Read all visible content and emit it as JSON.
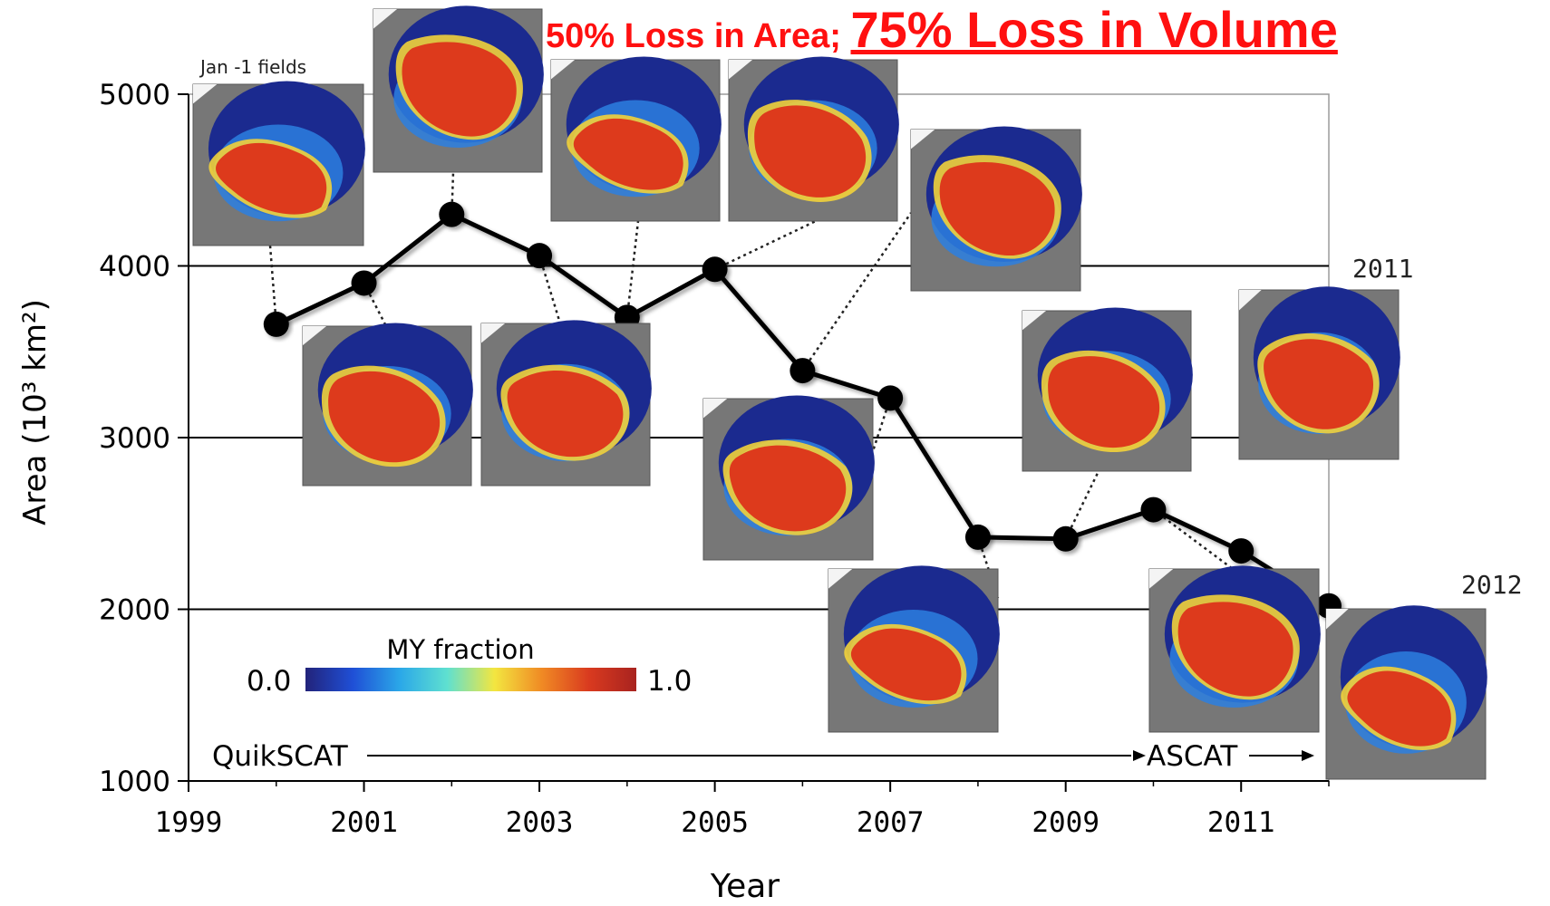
{
  "headline": {
    "part1": "50% Loss in Area; ",
    "part2": "75% Loss in Volume",
    "color": "#ff0000"
  },
  "chart_data": {
    "type": "line",
    "xlabel": "Year",
    "ylabel": "Area (10³ km²)",
    "xlim": [
      1999,
      2012
    ],
    "ylim": [
      1000,
      5000
    ],
    "x_ticks": [
      "1999",
      "2001",
      "2003",
      "2005",
      "2007",
      "2009",
      "2011"
    ],
    "y_ticks": [
      "1000",
      "2000",
      "3000",
      "4000",
      "5000"
    ],
    "grid": "horizontal at 2000, 3000, 4000",
    "x": [
      2000,
      2001,
      2002,
      2003,
      2004,
      2005,
      2006,
      2007,
      2008,
      2009,
      2010,
      2011,
      2012
    ],
    "values": [
      3660,
      3900,
      4300,
      4060,
      3700,
      3980,
      3390,
      3230,
      2420,
      2410,
      2580,
      2340,
      2020
    ],
    "line_color": "#000000",
    "annotations": {
      "inset_caption": "Jan -1 fields",
      "year_2011": "2011",
      "year_2012": "2012",
      "sensor_1": "QuikSCAT",
      "sensor_2": "ASCAT"
    },
    "colorbar": {
      "title": "MY fraction",
      "min_label": "0.0",
      "max_label": "1.0",
      "colors": [
        "#22237a",
        "#1f4fd6",
        "#2ba8e8",
        "#5fe0d0",
        "#f3e640",
        "#f08a24",
        "#d93a1f",
        "#a8231f"
      ]
    },
    "insets": [
      {
        "year": 2000,
        "pattern": "arctic-map"
      },
      {
        "year": 2001,
        "pattern": "arctic-map"
      },
      {
        "year": 2002,
        "pattern": "arctic-map"
      },
      {
        "year": 2003,
        "pattern": "arctic-map"
      },
      {
        "year": 2004,
        "pattern": "arctic-map"
      },
      {
        "year": 2005,
        "pattern": "arctic-map"
      },
      {
        "year": 2006,
        "pattern": "arctic-map"
      },
      {
        "year": 2007,
        "pattern": "arctic-map"
      },
      {
        "year": 2008,
        "pattern": "arctic-map"
      },
      {
        "year": 2009,
        "pattern": "arctic-map"
      },
      {
        "year": 2010,
        "pattern": "arctic-map"
      },
      {
        "year": 2011,
        "pattern": "arctic-map"
      },
      {
        "year": 2012,
        "pattern": "arctic-map"
      }
    ]
  }
}
